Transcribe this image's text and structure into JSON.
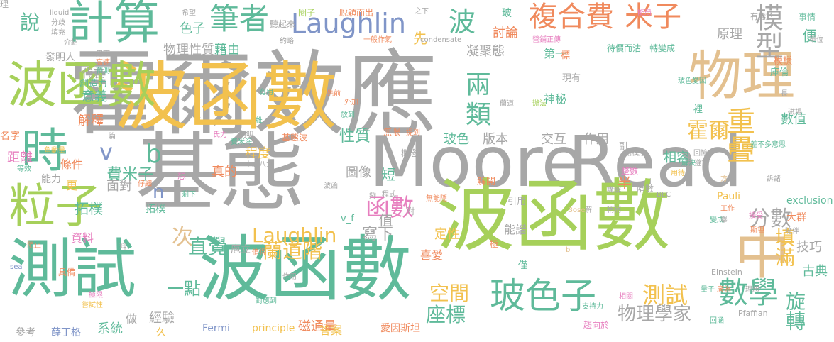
{
  "palette": {
    "gray": "#a7a7a7",
    "teal": "#5fba9a",
    "gold": "#f2c14e",
    "lime": "#a6d05a",
    "tan": "#e3c08f",
    "orange": "#f08a5d",
    "blue": "#8095c8",
    "pink": "#e77fbf",
    "purple": "#c89bd6"
  },
  "words": [
    {
      "text": "霍爾效應",
      "color": "#a7a7a7"
    },
    {
      "text": "Moore",
      "color": "#a7a7a7"
    },
    {
      "text": "Read",
      "color": "#a7a7a7"
    },
    {
      "text": "基態",
      "color": "#a7a7a7"
    },
    {
      "text": "波函數",
      "color": "#f2c14e"
    },
    {
      "text": "波函數",
      "color": "#5fba9a"
    },
    {
      "text": "波函數",
      "color": "#a6d05a"
    },
    {
      "text": "波函數",
      "color": "#a6d05a"
    },
    {
      "text": "測試",
      "color": "#5fba9a"
    },
    {
      "text": "物理",
      "color": "#e3c08f"
    },
    {
      "text": "計算",
      "color": "#5fba9a"
    },
    {
      "text": "粒子",
      "color": "#a6d05a"
    },
    {
      "text": "時",
      "color": "#5fba9a"
    },
    {
      "text": "中",
      "color": "#e3c08f"
    },
    {
      "text": "玻色子",
      "color": "#5fba9a"
    },
    {
      "text": "Laughlin",
      "color": "#8095c8"
    },
    {
      "text": "Laughlin",
      "color": "#f2c14e"
    },
    {
      "text": "複合費",
      "color": "#f08a5d"
    },
    {
      "text": "米子",
      "color": "#f08a5d"
    },
    {
      "text": "筆者",
      "color": "#5fba9a"
    },
    {
      "text": "數學",
      "color": "#5fba9a"
    },
    {
      "text": "波",
      "color": "#5fba9a"
    },
    {
      "text": "模型",
      "color": "#a7a7a7"
    },
    {
      "text": "分數",
      "color": "#a7a7a7"
    },
    {
      "text": "兩",
      "color": "#5fba9a"
    },
    {
      "text": "類",
      "color": "#5fba9a"
    },
    {
      "text": "重疊",
      "color": "#f2c14e"
    },
    {
      "text": "霍爾",
      "color": "#f2c14e"
    },
    {
      "text": "函數",
      "color": "#e77fbf"
    },
    {
      "text": "直覺",
      "color": "#5fba9a"
    },
    {
      "text": "蘭道階",
      "color": "#f2c14e"
    },
    {
      "text": "測試",
      "color": "#f2c14e"
    },
    {
      "text": "座標",
      "color": "#5fba9a"
    },
    {
      "text": "空間",
      "color": "#f2c14e"
    },
    {
      "text": "旋轉",
      "color": "#5fba9a"
    },
    {
      "text": "填滿",
      "color": "#f2c14e"
    },
    {
      "text": "說",
      "color": "#5fba9a"
    },
    {
      "text": "次",
      "color": "#e3c08f"
    },
    {
      "text": "一點",
      "color": "#5fba9a"
    },
    {
      "text": "v",
      "color": "#8095c8"
    },
    {
      "text": "b",
      "color": "#5fba9a"
    },
    {
      "text": "n",
      "color": "#8095c8"
    },
    {
      "text": "物理學家",
      "color": "#a7a7a7"
    },
    {
      "text": "費米子",
      "color": "#5fba9a"
    },
    {
      "text": "性質",
      "color": "#5fba9a"
    },
    {
      "text": "寫下",
      "color": "#a7a7a7"
    },
    {
      "text": "版本",
      "color": "#a7a7a7"
    },
    {
      "text": "交互",
      "color": "#a7a7a7"
    },
    {
      "text": "作用",
      "color": "#a7a7a7"
    },
    {
      "text": "玻色",
      "color": "#5fba9a"
    },
    {
      "text": "凝聚態",
      "color": "#a7a7a7"
    },
    {
      "text": "先",
      "color": "#f2c14e"
    },
    {
      "text": "色子",
      "color": "#5fba9a"
    },
    {
      "text": "討論",
      "color": "#f08a5d"
    },
    {
      "text": "物理性質",
      "color": "#a7a7a7"
    },
    {
      "text": "藉由",
      "color": "#5fba9a"
    },
    {
      "text": "原理",
      "color": "#a7a7a7"
    },
    {
      "text": "便",
      "color": "#5fba9a"
    },
    {
      "text": "技巧",
      "color": "#a7a7a7"
    },
    {
      "text": "古典",
      "color": "#5fba9a"
    },
    {
      "text": "拓樸",
      "color": "#5fba9a"
    },
    {
      "text": "數值",
      "color": "#5fba9a"
    },
    {
      "text": "相容",
      "color": "#5fba9a"
    },
    {
      "text": "半",
      "color": "#f08a5d"
    },
    {
      "text": "定性",
      "color": "#f2c14e"
    },
    {
      "text": "值",
      "color": "#a7a7a7"
    },
    {
      "text": "圖像",
      "color": "#a7a7a7"
    },
    {
      "text": "短",
      "color": "#5fba9a"
    },
    {
      "text": "磁通量",
      "color": "#f08a5d"
    },
    {
      "text": "系統",
      "color": "#5fba9a"
    },
    {
      "text": "面對",
      "color": "#a7a7a7"
    },
    {
      "text": "真的",
      "color": "#f08a5d"
    },
    {
      "text": "程度",
      "color": "#f2c14e"
    },
    {
      "text": "代表",
      "color": "#a7a7a7"
    },
    {
      "text": "意義",
      "color": "#5fba9a"
    },
    {
      "text": "解釋",
      "color": "#f08a5d"
    },
    {
      "text": "距離",
      "color": "#e77fbf"
    },
    {
      "text": "條件",
      "color": "#f08a5d"
    },
    {
      "text": "能力",
      "color": "#a7a7a7"
    },
    {
      "text": "更",
      "color": "#f2c14e"
    },
    {
      "text": "拓樸",
      "color": "#5fba9a"
    },
    {
      "text": "資料",
      "color": "#e77fbf"
    },
    {
      "text": "庖立",
      "color": "#a7a7a7"
    },
    {
      "text": "具備",
      "color": "#f08a5d"
    },
    {
      "text": "經驗",
      "color": "#a7a7a7"
    },
    {
      "text": "做",
      "color": "#a7a7a7"
    },
    {
      "text": "久",
      "color": "#f2c14e"
    },
    {
      "text": "Fermi",
      "color": "#8095c8"
    },
    {
      "text": "principle",
      "color": "#f2c14e"
    },
    {
      "text": "答案",
      "color": "#f2c14e"
    },
    {
      "text": "愛因斯坦",
      "color": "#f08a5d"
    },
    {
      "text": "參考",
      "color": "#a7a7a7"
    },
    {
      "text": "薛丁格",
      "color": "#8095c8"
    },
    {
      "text": "創造力",
      "color": "#5fba9a"
    },
    {
      "text": "發明人",
      "color": "#a7a7a7"
    },
    {
      "text": "名字",
      "color": "#f08a5d"
    },
    {
      "text": "玻",
      "color": "#5fba9a"
    },
    {
      "text": "Pauli",
      "color": "#f2c14e"
    },
    {
      "text": "exclusion",
      "color": "#5fba9a"
    },
    {
      "text": "大群",
      "color": "#f08a5d"
    },
    {
      "text": "喜愛",
      "color": "#f08a5d"
    },
    {
      "text": "v_f",
      "color": "#5fba9a"
    },
    {
      "text": "引用",
      "color": "#a7a7a7"
    },
    {
      "text": "解開",
      "color": "#f08a5d"
    },
    {
      "text": "能譜",
      "color": "#a7a7a7"
    },
    {
      "text": "僅",
      "color": "#5fba9a"
    },
    {
      "text": "模樣",
      "color": "#f08a5d"
    },
    {
      "text": "庫倫",
      "color": "#5fba9a"
    },
    {
      "text": "現有",
      "color": "#a7a7a7"
    },
    {
      "text": "第一",
      "color": "#5fba9a"
    },
    {
      "text": "標",
      "color": "#f08a5d"
    },
    {
      "text": "神秘",
      "color": "#5fba9a"
    },
    {
      "text": "裡",
      "color": "#5fba9a"
    },
    {
      "text": "轉變成",
      "color": "#5fba9a"
    },
    {
      "text": "待價而沽",
      "color": "#5fba9a"
    },
    {
      "text": "有鑒於",
      "color": "#a7a7a7"
    },
    {
      "text": "事情",
      "color": "#5fba9a"
    },
    {
      "text": "圈子",
      "color": "#a6d05a"
    },
    {
      "text": "脫穎而出",
      "color": "#f08a5d"
    },
    {
      "text": "聽起來",
      "color": "#a7a7a7"
    },
    {
      "text": "約略",
      "color": "#a7a7a7"
    },
    {
      "text": "condensate",
      "color": "#a7a7a7"
    },
    {
      "text": "Einstein",
      "color": "#a7a7a7"
    },
    {
      "text": "量子",
      "color": "#5fba9a"
    },
    {
      "text": "廣為",
      "color": "#f08a5d"
    },
    {
      "text": "理想",
      "color": "#a7a7a7"
    },
    {
      "text": "Pfaffian",
      "color": "#a7a7a7"
    },
    {
      "text": "基態波",
      "color": "#f08a5d"
    },
    {
      "text": "十之八九",
      "color": "#a7a7a7"
    },
    {
      "text": "BEC",
      "color": "#a7a7a7"
    },
    {
      "text": "Bose",
      "color": "#e3c08f"
    },
    {
      "text": "sea",
      "color": "#8095c8"
    },
    {
      "text": "liquid",
      "color": "#a7a7a7"
    },
    {
      "text": "分歧",
      "color": "#a7a7a7"
    },
    {
      "text": "填充",
      "color": "#a7a7a7"
    },
    {
      "text": "介紹",
      "color": "#a7a7a7"
    },
    {
      "text": "希望",
      "color": "#a7a7a7"
    },
    {
      "text": "高速",
      "color": "#f08a5d"
    },
    {
      "text": "預測",
      "color": "#5fba9a"
    },
    {
      "text": "有用",
      "color": "#5fba9a"
    },
    {
      "text": "外加",
      "color": "#f08a5d"
    },
    {
      "text": "先前",
      "color": "#f08a5d"
    },
    {
      "text": "放到",
      "color": "#5fba9a"
    },
    {
      "text": "無限",
      "color": "#f08a5d"
    },
    {
      "text": "提到",
      "color": "#f08a5d"
    },
    {
      "text": "概念",
      "color": "#a7a7a7"
    },
    {
      "text": "想",
      "color": "#e77fbf"
    },
    {
      "text": "剩下",
      "color": "#5fba9a"
    },
    {
      "text": "整數",
      "color": "#e77fbf"
    },
    {
      "text": "回憶",
      "color": "#a7a7a7"
    },
    {
      "text": "遵守",
      "color": "#a7a7a7"
    },
    {
      "text": "用待",
      "color": "#f2c14e"
    },
    {
      "text": "講解",
      "color": "#a7a7a7"
    },
    {
      "text": "階數",
      "color": "#a7a7a7"
    },
    {
      "text": "解",
      "color": "#a7a7a7"
    },
    {
      "text": "稍稍",
      "color": "#a7a7a7"
    },
    {
      "text": "工作",
      "color": "#f08a5d"
    },
    {
      "text": "接受",
      "color": "#e77fbf"
    },
    {
      "text": "斯坦",
      "color": "#f08a5d"
    },
    {
      "text": "隨伴",
      "color": "#a7a7a7"
    },
    {
      "text": "相關",
      "color": "#e77fbf"
    },
    {
      "text": "支持力",
      "color": "#5fba9a"
    },
    {
      "text": "回涵",
      "color": "#5fba9a"
    },
    {
      "text": "趨向於",
      "color": "#e77fbf"
    },
    {
      "text": "長",
      "color": "#a7a7a7"
    },
    {
      "text": "磁場",
      "color": "#a7a7a7"
    },
    {
      "text": "拓樸序",
      "color": "#a7a7a7"
    },
    {
      "text": "解決",
      "color": "#5fba9a"
    },
    {
      "text": "差不多意思",
      "color": "#5fba9a"
    },
    {
      "text": "玻色愛因",
      "color": "#5fba9a"
    },
    {
      "text": "單位",
      "color": "#a7a7a7"
    },
    {
      "text": "能局",
      "color": "#e77fbf"
    },
    {
      "text": "之下",
      "color": "#a7a7a7"
    },
    {
      "text": "一般作氣",
      "color": "#f08a5d"
    },
    {
      "text": "營鋪正傳",
      "color": "#e77fbf"
    },
    {
      "text": "用下",
      "color": "#a7a7a7"
    },
    {
      "text": "篇",
      "color": "#a7a7a7"
    },
    {
      "text": "維",
      "color": "#5fba9a"
    },
    {
      "text": "蘭道",
      "color": "#a7a7a7"
    },
    {
      "text": "辦法",
      "color": "#a6d05a"
    },
    {
      "text": "氏力",
      "color": "#e77fbf"
    },
    {
      "text": "費米海",
      "color": "#5fba9a"
    },
    {
      "text": "明明",
      "color": "#a7a7a7"
    },
    {
      "text": "等效",
      "color": "#5fba9a"
    },
    {
      "text": "角動量",
      "color": "#f2c14e"
    },
    {
      "text": "仔細",
      "color": "#f08a5d"
    },
    {
      "text": "料",
      "color": "#a7a7a7"
    },
    {
      "text": "阻止",
      "color": "#f08a5d"
    },
    {
      "text": "極限",
      "color": "#e77fbf"
    },
    {
      "text": "嘗試性",
      "color": "#f2c14e"
    },
    {
      "text": "對應到",
      "color": "#5fba9a"
    },
    {
      "text": "值得",
      "color": "#f08a5d"
    },
    {
      "text": "作用",
      "color": "#a7a7a7"
    },
    {
      "text": "附",
      "color": "#a7a7a7"
    },
    {
      "text": "程式",
      "color": "#a7a7a7"
    },
    {
      "text": "無能隱",
      "color": "#f08a5d"
    },
    {
      "text": "波函",
      "color": "#a7a7a7"
    },
    {
      "text": "夠",
      "color": "#a7a7a7"
    },
    {
      "text": "極",
      "color": "#f08a5d"
    },
    {
      "text": "副",
      "color": "#a7a7a7"
    },
    {
      "text": "方",
      "color": "#e3c08f"
    },
    {
      "text": "訴諸",
      "color": "#a7a7a7"
    },
    {
      "text": "b",
      "color": "#e3c08f"
    },
    {
      "text": "變成",
      "color": "#5fba9a"
    },
    {
      "text": "舉",
      "color": "#a7a7a7"
    },
    {
      "text": "理",
      "color": "#a7a7a7"
    }
  ]
}
